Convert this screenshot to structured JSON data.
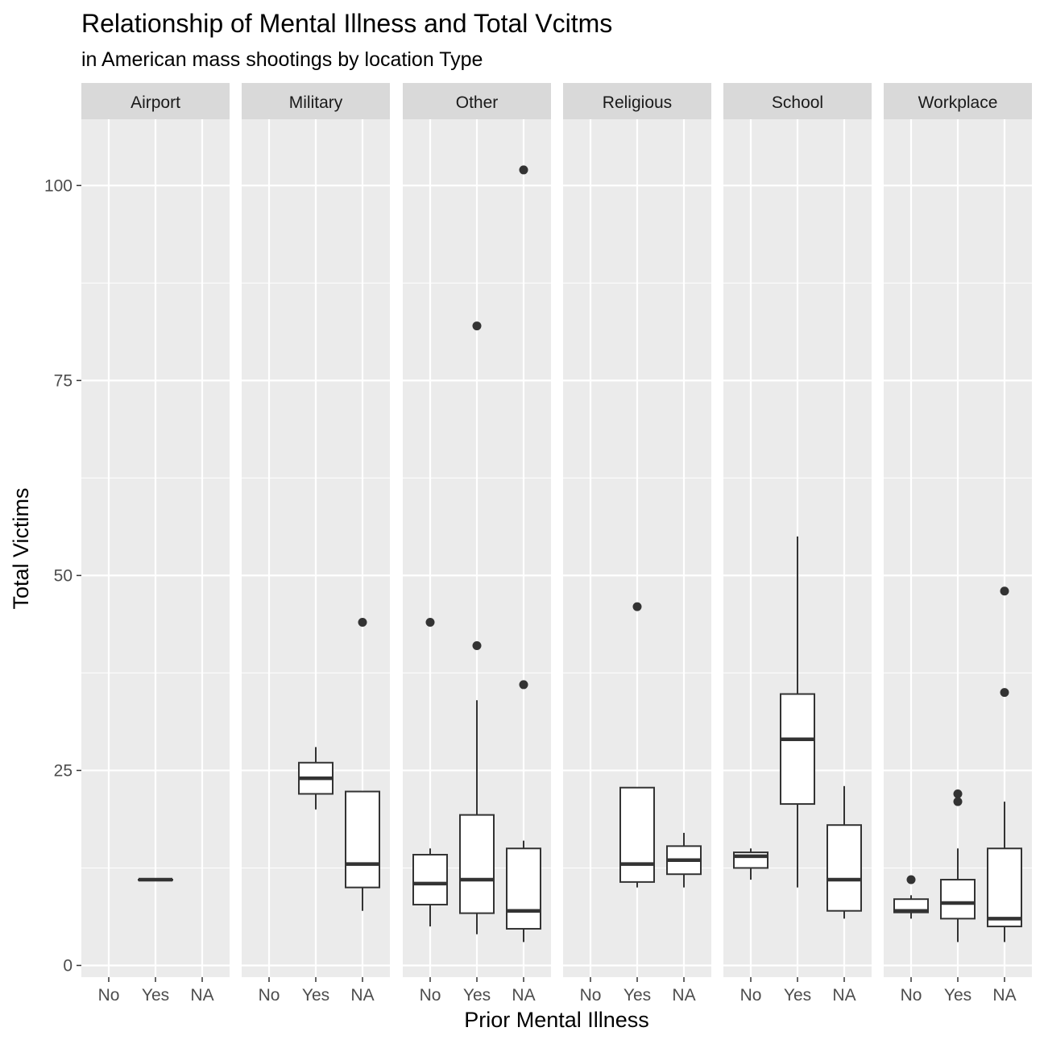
{
  "chart_data": {
    "type": "boxplot",
    "title": "Relationship of Mental Illness and Total Vcitms",
    "subtitle": "in American mass shootings by location Type",
    "xlabel": "Prior Mental Illness",
    "ylabel": "Total Victims",
    "categories": [
      "No",
      "Yes",
      "NA"
    ],
    "ylim": [
      -1.5,
      108.5
    ],
    "yticks": [
      0,
      25,
      50,
      75,
      100
    ],
    "grid": true,
    "colors": {
      "panel_bg": "#ebebeb",
      "grid": "#ffffff",
      "strip_bg": "#d9d9d9",
      "box_line": "#333333",
      "box_fill": "#ffffff"
    },
    "facets": [
      {
        "name": "Airport",
        "boxes": [
          {
            "category": "Yes",
            "min": 11,
            "q1": 11,
            "median": 11,
            "q3": 11,
            "max": 11,
            "outliers": []
          }
        ]
      },
      {
        "name": "Military",
        "boxes": [
          {
            "category": "Yes",
            "min": 20,
            "q1": 22,
            "median": 24,
            "q3": 26,
            "max": 28,
            "outliers": []
          },
          {
            "category": "NA",
            "min": 7,
            "q1": 10,
            "median": 13,
            "q3": 22.3,
            "max": 22.3,
            "outliers": [
              44
            ]
          }
        ]
      },
      {
        "name": "Other",
        "boxes": [
          {
            "category": "No",
            "min": 5,
            "q1": 7.8,
            "median": 10.5,
            "q3": 14.2,
            "max": 15,
            "outliers": [
              44
            ]
          },
          {
            "category": "Yes",
            "min": 4,
            "q1": 6.7,
            "median": 11,
            "q3": 19.3,
            "max": 34,
            "outliers": [
              41,
              82
            ]
          },
          {
            "category": "NA",
            "min": 3,
            "q1": 4.7,
            "median": 7,
            "q3": 15,
            "max": 16,
            "outliers": [
              36,
              102
            ]
          }
        ]
      },
      {
        "name": "Religious",
        "boxes": [
          {
            "category": "Yes",
            "min": 10,
            "q1": 10.7,
            "median": 13,
            "q3": 22.8,
            "max": 22.8,
            "outliers": [
              46
            ]
          },
          {
            "category": "NA",
            "min": 10,
            "q1": 11.7,
            "median": 13.5,
            "q3": 15.3,
            "max": 17,
            "outliers": []
          }
        ]
      },
      {
        "name": "School",
        "boxes": [
          {
            "category": "No",
            "min": 11,
            "q1": 12.5,
            "median": 14,
            "q3": 14.5,
            "max": 15,
            "outliers": []
          },
          {
            "category": "Yes",
            "min": 10,
            "q1": 20.7,
            "median": 29,
            "q3": 34.8,
            "max": 55,
            "outliers": []
          },
          {
            "category": "NA",
            "min": 6,
            "q1": 7,
            "median": 11,
            "q3": 18,
            "max": 23,
            "outliers": []
          }
        ]
      },
      {
        "name": "Workplace",
        "boxes": [
          {
            "category": "No",
            "min": 6,
            "q1": 6.8,
            "median": 7,
            "q3": 8.5,
            "max": 9,
            "outliers": [
              11
            ]
          },
          {
            "category": "Yes",
            "min": 3,
            "q1": 6,
            "median": 8,
            "q3": 11,
            "max": 15,
            "outliers": [
              21,
              22
            ]
          },
          {
            "category": "NA",
            "min": 3,
            "q1": 5,
            "median": 6,
            "q3": 15,
            "max": 21,
            "outliers": [
              35,
              48
            ]
          }
        ]
      }
    ]
  }
}
